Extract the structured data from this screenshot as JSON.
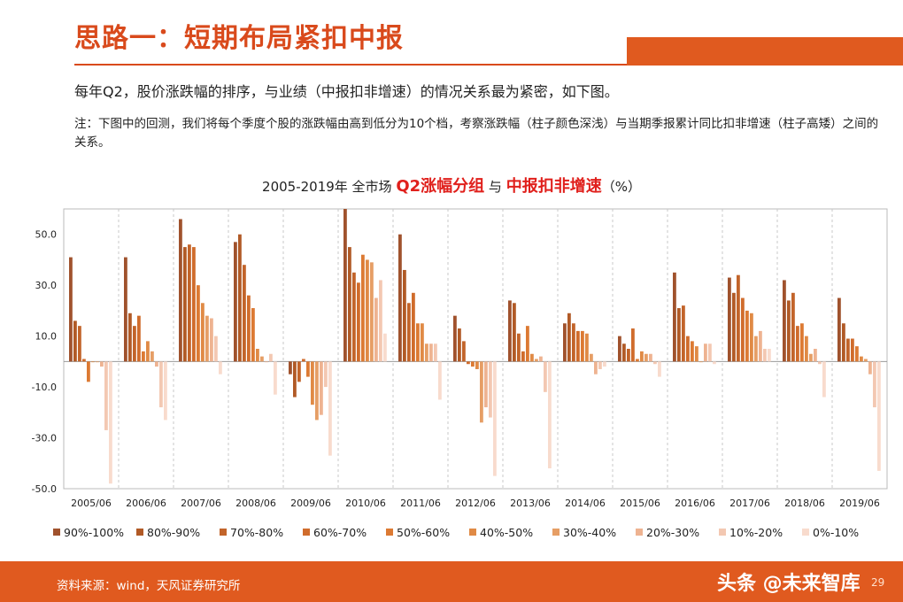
{
  "header": {
    "title": "思路一：短期布局紧扣中报",
    "paragraph": "每年Q2，股价涨跌幅的排序，与业绩（中报扣非增速）的情况关系最为紧密，如下图。",
    "note": "注：下图中的回测，我们将每个季度个股的涨跌幅由高到低分为10个档，考察涨跌幅（柱子颜色深浅）与当期季报累计同比扣非增速（柱子高矮）之间的关系。"
  },
  "chart_title": {
    "prefix": "2005-2019年 全市场 ",
    "highlight1": "Q2涨幅分组",
    "mid": " 与 ",
    "highlight2": "中报扣非增速",
    "suffix": "（%）"
  },
  "footer": {
    "source": "资料来源：wind，天风证券研究所",
    "watermark": "头条 @未来智库",
    "page": "29"
  },
  "chart_data": {
    "type": "bar",
    "categories": [
      "2005/06",
      "2006/06",
      "2007/06",
      "2008/06",
      "2009/06",
      "2010/06",
      "2011/06",
      "2012/06",
      "2013/06",
      "2014/06",
      "2015/06",
      "2016/06",
      "2017/06",
      "2018/06",
      "2019/06"
    ],
    "ylim": [
      -50,
      60
    ],
    "yticks": [
      "50.0",
      "30.0",
      "10.0",
      "-10.0",
      "-30.0",
      "-50.0"
    ],
    "ytick_values": [
      50,
      30,
      10,
      -10,
      -30,
      -50
    ],
    "grid": false,
    "legend_position": "bottom",
    "series": [
      {
        "name": "90%-100%",
        "color": "#a0522d",
        "values": [
          41,
          41,
          56,
          47,
          -5,
          60,
          50,
          18,
          24,
          15,
          10,
          35,
          33,
          32,
          25
        ]
      },
      {
        "name": "80%-90%",
        "color": "#b15a26",
        "values": [
          16,
          19,
          45,
          50,
          -14,
          45,
          36,
          13,
          23,
          19,
          7,
          21,
          27,
          24,
          15
        ]
      },
      {
        "name": "70%-80%",
        "color": "#c2642a",
        "values": [
          14,
          14,
          46,
          38,
          -8,
          35,
          23,
          8,
          11,
          15,
          5,
          22,
          34,
          27,
          9
        ]
      },
      {
        "name": "60%-70%",
        "color": "#d06c2c",
        "values": [
          1,
          18,
          45,
          26,
          1,
          31,
          27,
          -1,
          4,
          12,
          13,
          10,
          25,
          14,
          9
        ]
      },
      {
        "name": "50%-60%",
        "color": "#dc7a33",
        "values": [
          -8,
          4,
          30,
          21,
          -6,
          42,
          15,
          -2,
          14,
          12,
          1,
          8,
          20,
          15,
          6
        ]
      },
      {
        "name": "40%-50%",
        "color": "#e08a45",
        "values": [
          0,
          8,
          23,
          5,
          -17,
          40,
          15,
          -3,
          3,
          11,
          4,
          6,
          19,
          10,
          2
        ]
      },
      {
        "name": "30%-40%",
        "color": "#e69e65",
        "values": [
          0,
          4,
          18,
          2,
          -23,
          39,
          7,
          -24,
          1,
          3,
          3,
          0,
          10,
          3,
          1
        ]
      },
      {
        "name": "20%-30%",
        "color": "#eeb391",
        "values": [
          -2,
          -2,
          17,
          0,
          -21,
          25,
          7,
          -18,
          2,
          -5,
          3,
          7,
          12,
          5,
          -5
        ]
      },
      {
        "name": "10%-20%",
        "color": "#f3c8b2",
        "values": [
          -27,
          -18,
          10,
          3,
          -10,
          32,
          7,
          -22,
          -12,
          -3,
          -1,
          7,
          5,
          -1,
          -18
        ]
      },
      {
        "name": "0%-10%",
        "color": "#f8dbcd",
        "values": [
          -48,
          -23,
          -5,
          -13,
          -37,
          11,
          -15,
          -45,
          -42,
          -2,
          -6,
          -1,
          5,
          -14,
          -43
        ]
      }
    ]
  }
}
